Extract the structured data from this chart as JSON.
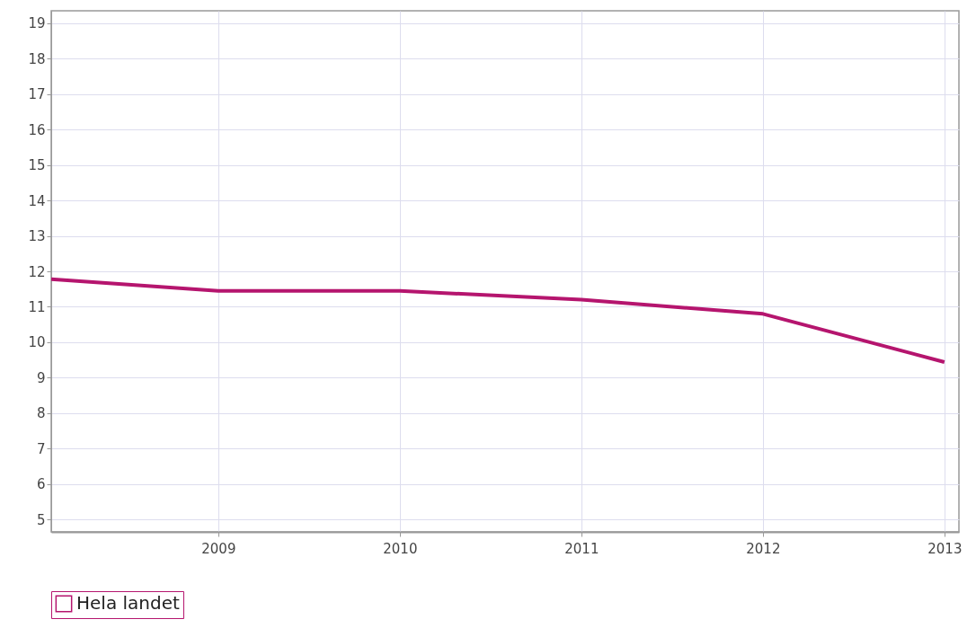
{
  "chart_data": {
    "type": "line",
    "x": [
      2008.08,
      2009,
      2010,
      2011,
      2012,
      2013
    ],
    "series": [
      {
        "name": "Hela landet",
        "color": "#b5156e",
        "values": [
          11.78,
          11.45,
          11.45,
          11.2,
          10.8,
          9.44
        ]
      }
    ],
    "xlim": [
      2008.08,
      2013.08
    ],
    "xticks": [
      2009,
      2010,
      2011,
      2012,
      2013
    ],
    "ylim": [
      4.65,
      19.35
    ],
    "yticks": [
      5,
      6,
      7,
      8,
      9,
      10,
      11,
      12,
      13,
      14,
      15,
      16,
      17,
      18,
      19
    ],
    "grid": true,
    "legend": "bottom",
    "marker": "none",
    "line_style": "solid"
  }
}
